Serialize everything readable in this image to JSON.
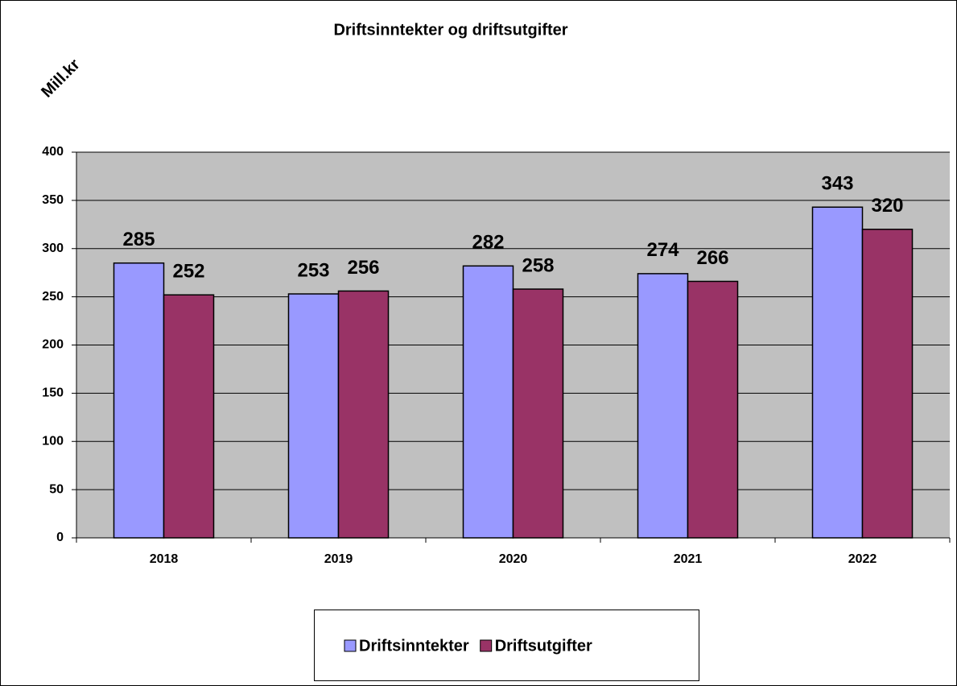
{
  "chart_data": {
    "type": "bar",
    "title": "Driftsinntekter og driftsutgifter",
    "ylabel": "Mill.kr",
    "categories": [
      "2018",
      "2019",
      "2020",
      "2021",
      "2022"
    ],
    "series": [
      {
        "name": "Driftsinntekter",
        "color": "#9999ff",
        "values": [
          285,
          253,
          282,
          274,
          343
        ]
      },
      {
        "name": "Driftsutgifter",
        "color": "#993366",
        "values": [
          252,
          256,
          258,
          266,
          320
        ]
      }
    ],
    "ylim": [
      0,
      400
    ],
    "yticks": [
      0,
      50,
      100,
      150,
      200,
      250,
      300,
      350,
      400
    ],
    "grid": true,
    "legend": "bottom"
  }
}
